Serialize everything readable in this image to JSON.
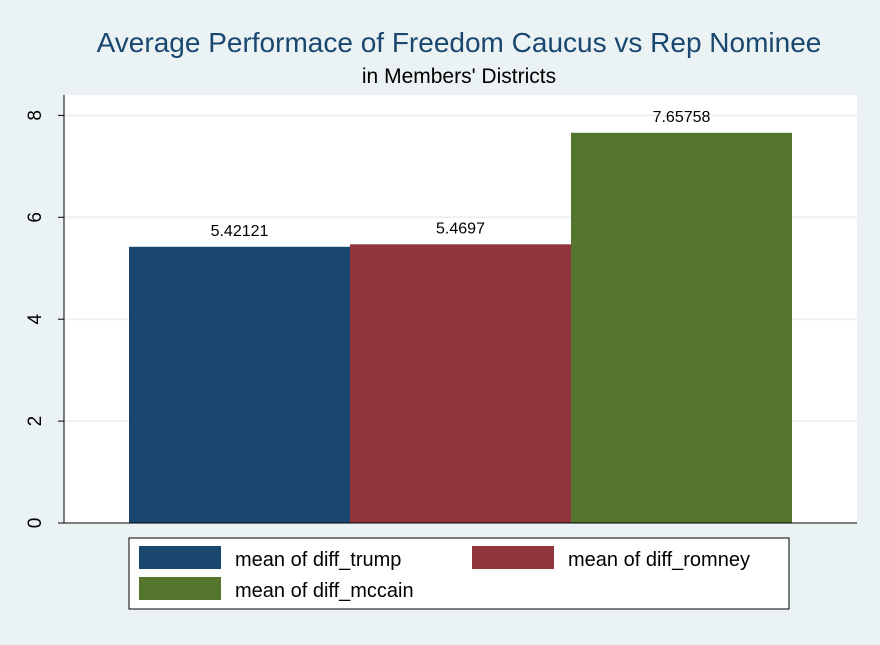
{
  "chart_data": {
    "type": "bar",
    "title": "Average Performace of Freedom Caucus vs Rep Nominee",
    "subtitle": "in Members' Districts",
    "xlabel": "",
    "ylabel": "",
    "ylim": [
      0,
      8.4
    ],
    "yticks": [
      0,
      2,
      4,
      6,
      8
    ],
    "grid": true,
    "legend_position": "bottom",
    "series": [
      {
        "name": "mean of diff_trump",
        "value": 5.42121,
        "label": "5.42121",
        "color": "#1a476f"
      },
      {
        "name": "mean of diff_romney",
        "value": 5.4697,
        "label": "5.4697",
        "color": "#90353b"
      },
      {
        "name": "mean of diff_mccain",
        "value": 7.65758,
        "label": "7.65758",
        "color": "#55752f"
      }
    ]
  }
}
